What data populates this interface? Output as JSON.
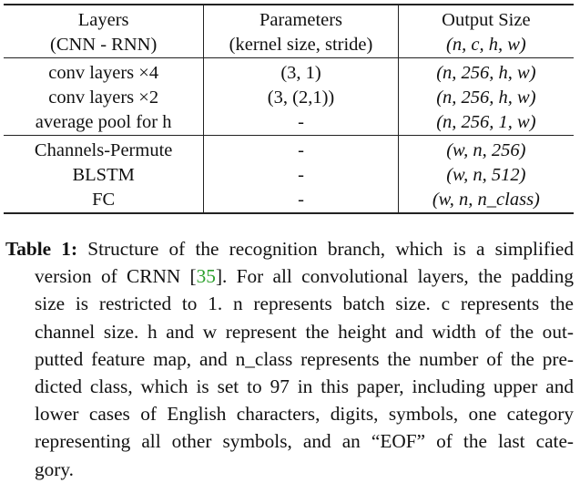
{
  "table": {
    "headers": [
      [
        "Layers",
        "(CNN - RNN)"
      ],
      [
        "Parameters",
        "(kernel size, stride)"
      ],
      [
        "Output Size",
        "(n, c, h, w)"
      ]
    ],
    "groups": [
      {
        "rows": [
          {
            "layer": "conv layers ×4",
            "params": "(3, 1)",
            "output": "(n, 256, h, w)"
          },
          {
            "layer": "conv layers ×2",
            "params": "(3, (2,1))",
            "output": "(n, 256, h, w)"
          },
          {
            "layer": "average pool for h",
            "params": "-",
            "output": "(n, 256, 1, w)"
          }
        ]
      },
      {
        "rows": [
          {
            "layer": "Channels-Permute",
            "params": "-",
            "output": "(w, n, 256)"
          },
          {
            "layer": "BLSTM",
            "params": "-",
            "output": "(w, n, 512)"
          },
          {
            "layer": "FC",
            "params": "-",
            "output": "(w, n, n_class)"
          }
        ]
      }
    ]
  },
  "caption": {
    "label": "Table 1:",
    "lines": [
      "Structure of the recognition branch, which is a simplified",
      "version of CRNN [35]. For all convolutional layers, the padding",
      "size is restricted to 1.  n represents batch size.  c represents the",
      "channel size.  h and w represent the height and width of the out-",
      "putted feature map, and n_class represents the number of the pre-",
      "dicted class, which is set to 97 in this paper, including upper and",
      "lower cases of English characters, digits, symbols, one category",
      "representing all other symbols, and an “EOF” of the last cate-",
      "gory."
    ]
  }
}
